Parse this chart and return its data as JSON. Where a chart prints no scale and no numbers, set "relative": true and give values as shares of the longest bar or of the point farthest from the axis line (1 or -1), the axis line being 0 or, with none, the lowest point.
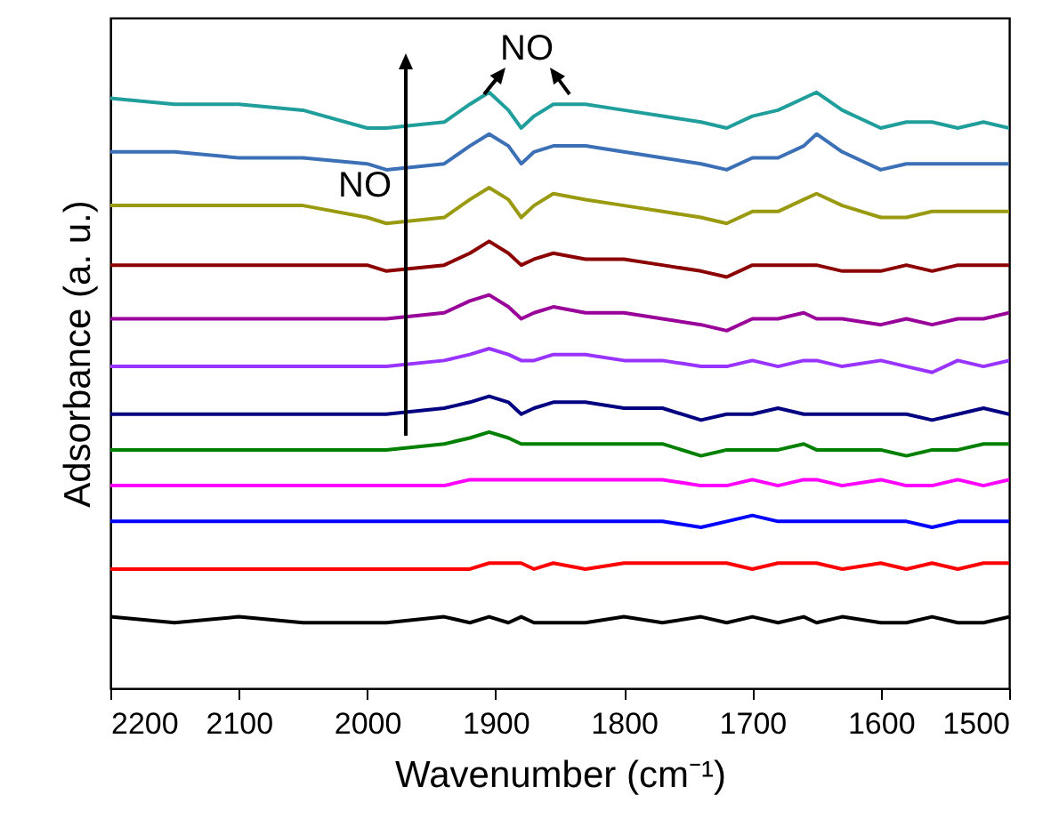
{
  "chart_data": {
    "type": "line",
    "relative": true,
    "xlabel": "Wavenumber (cm⁻¹)",
    "ylabel": "Adsorbance (a. u.)",
    "grid": false,
    "x": [
      2200,
      2150,
      2100,
      2050,
      2000,
      1985,
      1940,
      1920,
      1905,
      1890,
      1880,
      1870,
      1855,
      1830,
      1800,
      1770,
      1740,
      1720,
      1700,
      1680,
      1660,
      1650,
      1630,
      1600,
      1580,
      1560,
      1540,
      1520,
      1500
    ],
    "xlim": [
      2200,
      1500
    ],
    "xticks": [
      2200,
      2100,
      2000,
      1900,
      1800,
      1700,
      1600,
      1500
    ],
    "series": [
      {
        "color": "#000000",
        "values": [
          0.12,
          0.11,
          0.12,
          0.11,
          0.11,
          0.11,
          0.12,
          0.11,
          0.12,
          0.11,
          0.12,
          0.11,
          0.11,
          0.11,
          0.12,
          0.11,
          0.12,
          0.11,
          0.12,
          0.11,
          0.12,
          0.11,
          0.12,
          0.11,
          0.11,
          0.12,
          0.11,
          0.11,
          0.12
        ]
      },
      {
        "color": "#ff0000",
        "values": [
          0.2,
          0.2,
          0.2,
          0.2,
          0.2,
          0.2,
          0.2,
          0.2,
          0.21,
          0.21,
          0.21,
          0.2,
          0.21,
          0.2,
          0.21,
          0.21,
          0.21,
          0.21,
          0.2,
          0.21,
          0.21,
          0.21,
          0.2,
          0.21,
          0.2,
          0.21,
          0.2,
          0.21,
          0.21
        ]
      },
      {
        "color": "#0000ff",
        "values": [
          0.28,
          0.28,
          0.28,
          0.28,
          0.28,
          0.28,
          0.28,
          0.28,
          0.28,
          0.28,
          0.28,
          0.28,
          0.28,
          0.28,
          0.28,
          0.28,
          0.27,
          0.28,
          0.29,
          0.28,
          0.28,
          0.28,
          0.28,
          0.28,
          0.28,
          0.27,
          0.28,
          0.28,
          0.28
        ]
      },
      {
        "color": "#ff00ff",
        "values": [
          0.34,
          0.34,
          0.34,
          0.34,
          0.34,
          0.34,
          0.34,
          0.35,
          0.35,
          0.35,
          0.35,
          0.35,
          0.35,
          0.35,
          0.35,
          0.35,
          0.34,
          0.34,
          0.35,
          0.34,
          0.35,
          0.35,
          0.34,
          0.35,
          0.34,
          0.34,
          0.35,
          0.34,
          0.35
        ]
      },
      {
        "color": "#008000",
        "values": [
          0.4,
          0.4,
          0.4,
          0.4,
          0.4,
          0.4,
          0.41,
          0.42,
          0.43,
          0.42,
          0.41,
          0.41,
          0.41,
          0.41,
          0.41,
          0.41,
          0.39,
          0.4,
          0.4,
          0.4,
          0.41,
          0.4,
          0.4,
          0.4,
          0.39,
          0.4,
          0.4,
          0.41,
          0.41
        ]
      },
      {
        "color": "#000080",
        "values": [
          0.46,
          0.46,
          0.46,
          0.46,
          0.46,
          0.46,
          0.47,
          0.48,
          0.49,
          0.48,
          0.46,
          0.47,
          0.48,
          0.48,
          0.47,
          0.47,
          0.45,
          0.46,
          0.46,
          0.47,
          0.46,
          0.46,
          0.46,
          0.46,
          0.46,
          0.45,
          0.46,
          0.47,
          0.46
        ]
      },
      {
        "color": "#9933ff",
        "values": [
          0.54,
          0.54,
          0.54,
          0.54,
          0.54,
          0.54,
          0.55,
          0.56,
          0.57,
          0.56,
          0.55,
          0.55,
          0.56,
          0.56,
          0.55,
          0.55,
          0.54,
          0.54,
          0.55,
          0.54,
          0.55,
          0.55,
          0.54,
          0.55,
          0.54,
          0.53,
          0.55,
          0.54,
          0.55
        ]
      },
      {
        "color": "#990099",
        "values": [
          0.62,
          0.62,
          0.62,
          0.62,
          0.62,
          0.62,
          0.63,
          0.65,
          0.66,
          0.64,
          0.62,
          0.63,
          0.64,
          0.63,
          0.63,
          0.62,
          0.61,
          0.6,
          0.62,
          0.62,
          0.63,
          0.62,
          0.62,
          0.61,
          0.62,
          0.61,
          0.62,
          0.62,
          0.63
        ]
      },
      {
        "color": "#8b0000",
        "values": [
          0.71,
          0.71,
          0.71,
          0.71,
          0.71,
          0.7,
          0.71,
          0.73,
          0.75,
          0.73,
          0.71,
          0.72,
          0.73,
          0.72,
          0.72,
          0.71,
          0.7,
          0.69,
          0.71,
          0.71,
          0.71,
          0.71,
          0.7,
          0.7,
          0.71,
          0.7,
          0.71,
          0.71,
          0.71
        ]
      },
      {
        "color": "#9a9a10",
        "values": [
          0.81,
          0.81,
          0.81,
          0.81,
          0.79,
          0.78,
          0.79,
          0.82,
          0.84,
          0.82,
          0.79,
          0.81,
          0.83,
          0.82,
          0.81,
          0.8,
          0.79,
          0.78,
          0.8,
          0.8,
          0.82,
          0.83,
          0.81,
          0.79,
          0.79,
          0.8,
          0.8,
          0.8,
          0.8
        ]
      },
      {
        "color": "#3b6fb6",
        "values": [
          0.9,
          0.9,
          0.89,
          0.89,
          0.88,
          0.87,
          0.88,
          0.91,
          0.93,
          0.91,
          0.88,
          0.9,
          0.91,
          0.91,
          0.9,
          0.89,
          0.88,
          0.87,
          0.89,
          0.89,
          0.91,
          0.93,
          0.9,
          0.87,
          0.88,
          0.88,
          0.88,
          0.88,
          0.88
        ]
      },
      {
        "color": "#1f9e9b",
        "values": [
          0.99,
          0.98,
          0.98,
          0.97,
          0.94,
          0.94,
          0.95,
          0.98,
          1.0,
          0.97,
          0.94,
          0.96,
          0.98,
          0.98,
          0.97,
          0.96,
          0.95,
          0.94,
          0.96,
          0.97,
          0.99,
          1.0,
          0.97,
          0.94,
          0.95,
          0.95,
          0.94,
          0.95,
          0.94
        ]
      }
    ],
    "annotations": [
      "NO",
      "NO"
    ]
  }
}
